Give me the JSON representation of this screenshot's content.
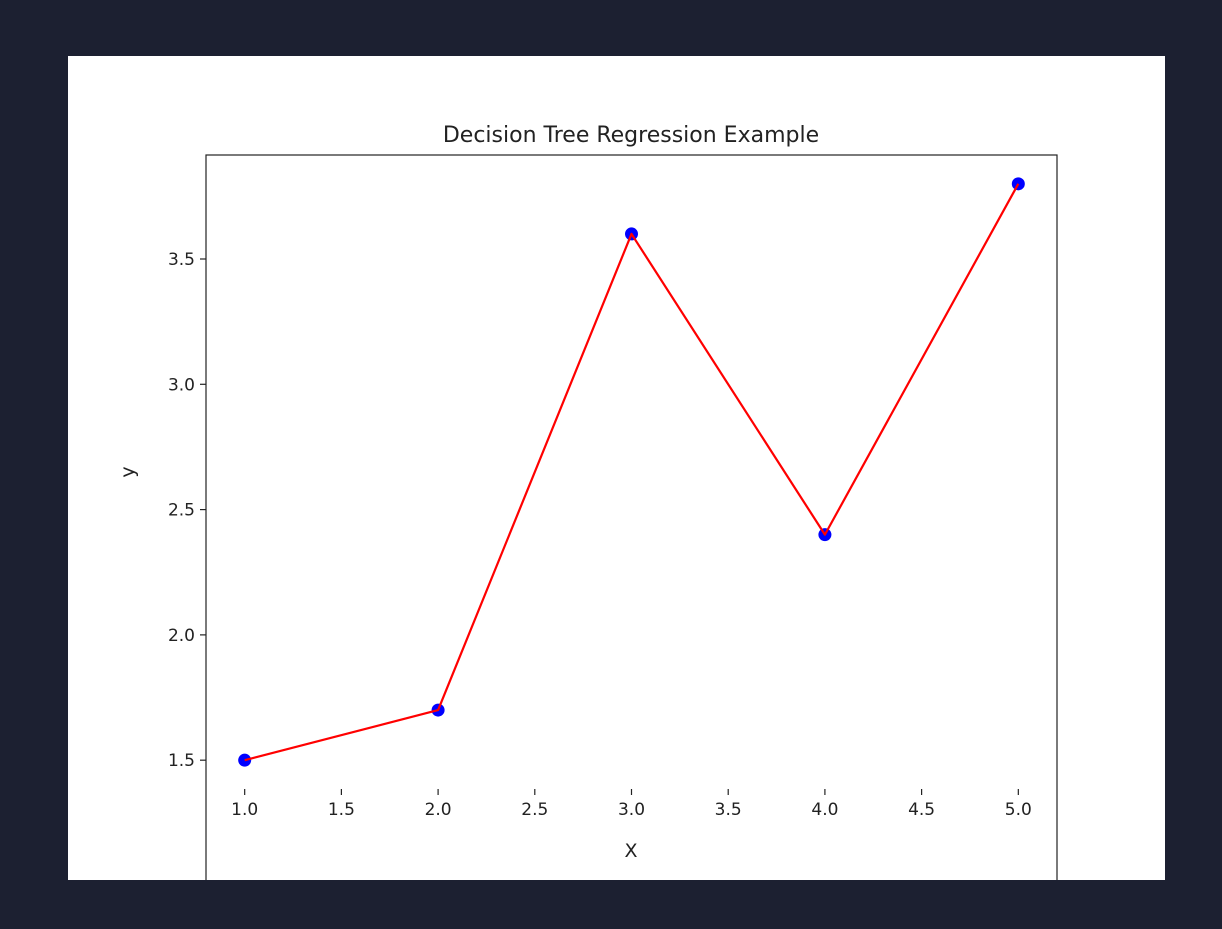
{
  "chart_data": {
    "type": "line",
    "title": "Decision Tree Regression Example",
    "xlabel": "X",
    "ylabel": "y",
    "xlim": [
      0.8,
      5.2
    ],
    "ylim": [
      1.385,
      3.915
    ],
    "xticks": [
      1.0,
      1.5,
      2.0,
      2.5,
      3.0,
      3.5,
      4.0,
      4.5,
      5.0
    ],
    "xtick_labels": [
      "1.0",
      "1.5",
      "2.0",
      "2.5",
      "3.0",
      "3.5",
      "4.0",
      "4.5",
      "5.0"
    ],
    "yticks": [
      1.5,
      2.0,
      2.5,
      3.0,
      3.5
    ],
    "ytick_labels": [
      "1.5",
      "2.0",
      "2.5",
      "3.0",
      "3.5"
    ],
    "grid": false,
    "series": [
      {
        "kind": "scatter",
        "color": "#0000ff",
        "x": [
          1,
          2,
          3,
          4,
          5
        ],
        "y": [
          1.5,
          1.7,
          3.6,
          2.4,
          3.8
        ]
      },
      {
        "kind": "line",
        "color": "#ff0000",
        "x": [
          1,
          2,
          3,
          4,
          5
        ],
        "y": [
          1.5,
          1.7,
          3.6,
          2.4,
          3.8
        ]
      }
    ]
  }
}
